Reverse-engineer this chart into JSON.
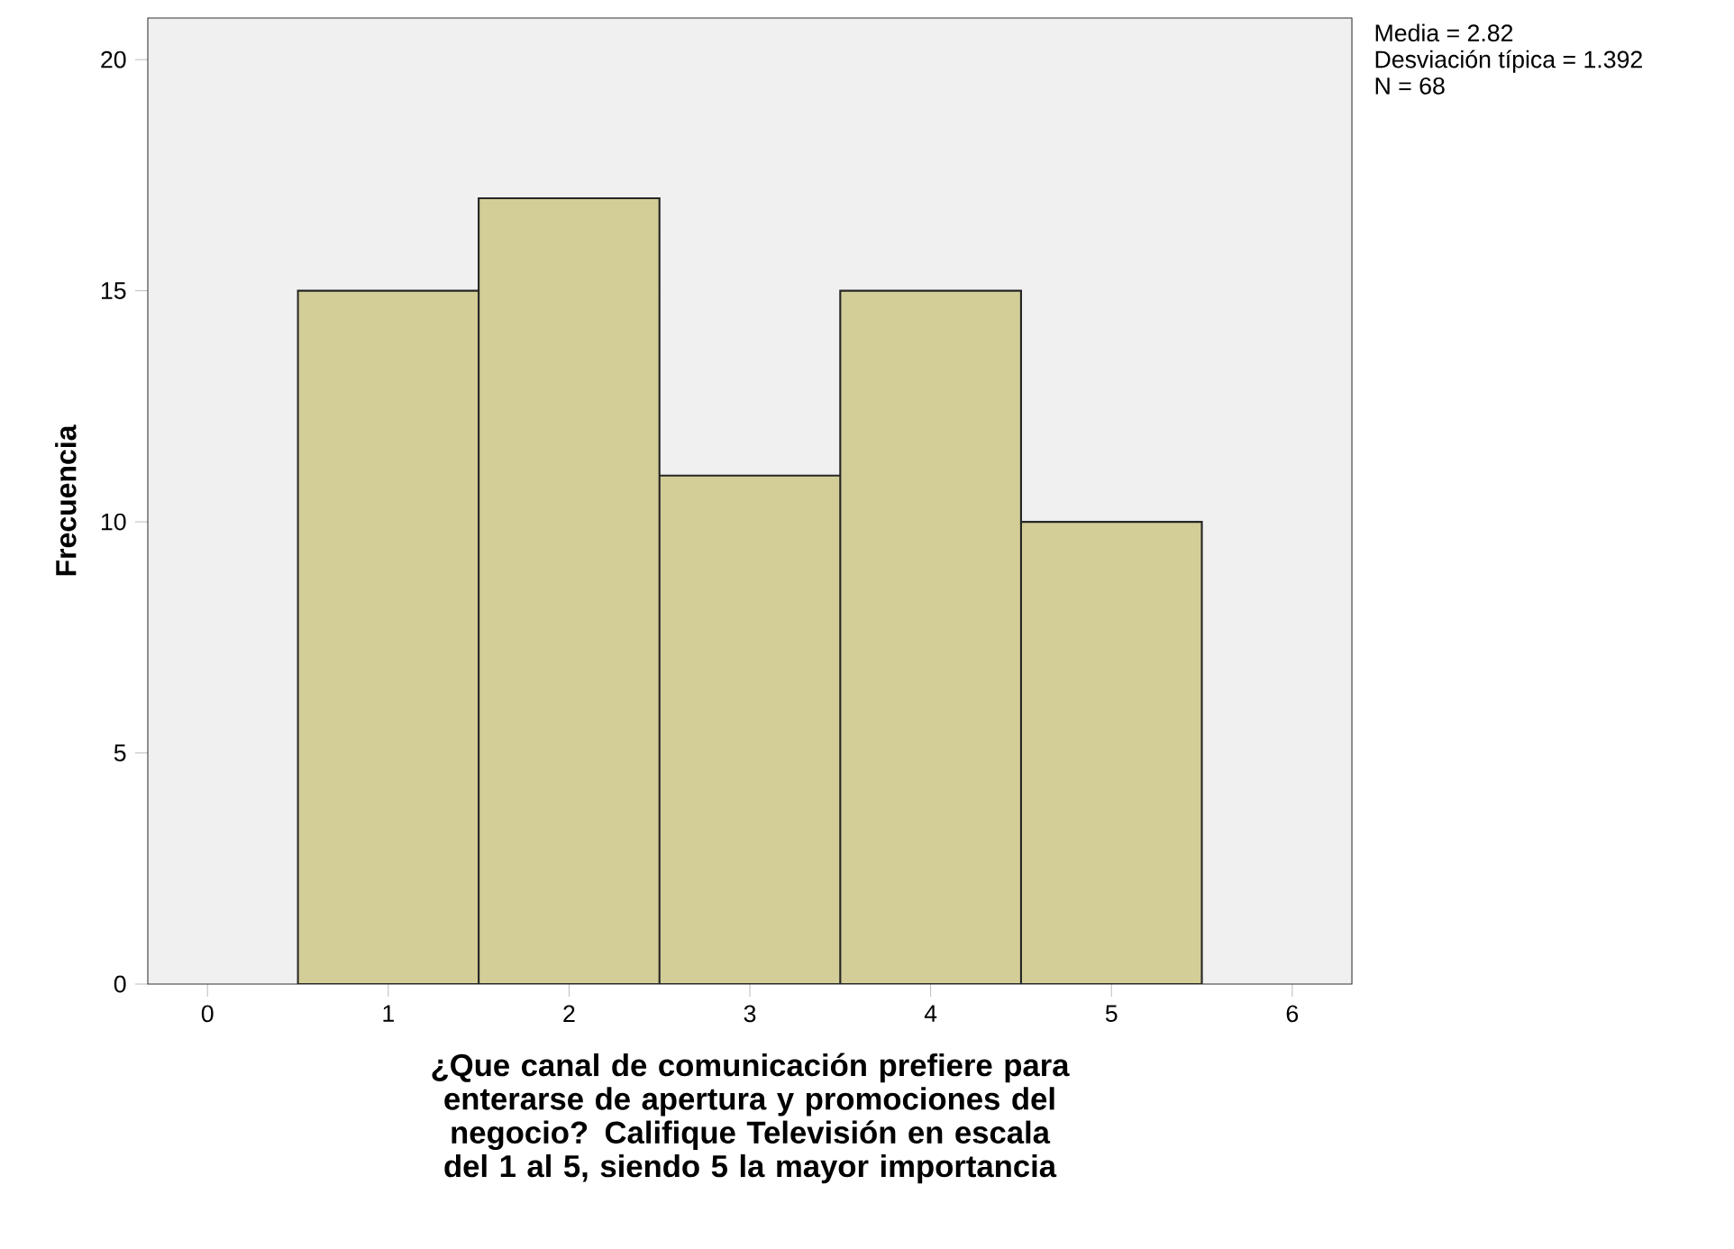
{
  "chart_data": {
    "type": "histogram",
    "xlabel": "¿Que canal de comunicación prefiere para enterarse de apertura y promociones del negocio? Califique Televisión en escala del 1 al 5, siendo 5 la mayor importancia",
    "ylabel": "Frecuencia",
    "bins": [
      0.5,
      1.5,
      2.5,
      3.5,
      4.5,
      5.5
    ],
    "values": [
      15,
      17,
      11,
      15,
      10
    ],
    "color": "#d3ce97",
    "xlim": [
      -0.33,
      6.33
    ],
    "ylim": [
      0,
      20.9
    ],
    "xticks": [
      0,
      1,
      2,
      3,
      4,
      5,
      6
    ],
    "yticks": [
      0,
      5,
      10,
      15,
      20
    ],
    "grid": false,
    "annotations": [
      "Media = 2.82",
      "Desviación típica = 1.392",
      "N = 68"
    ]
  }
}
